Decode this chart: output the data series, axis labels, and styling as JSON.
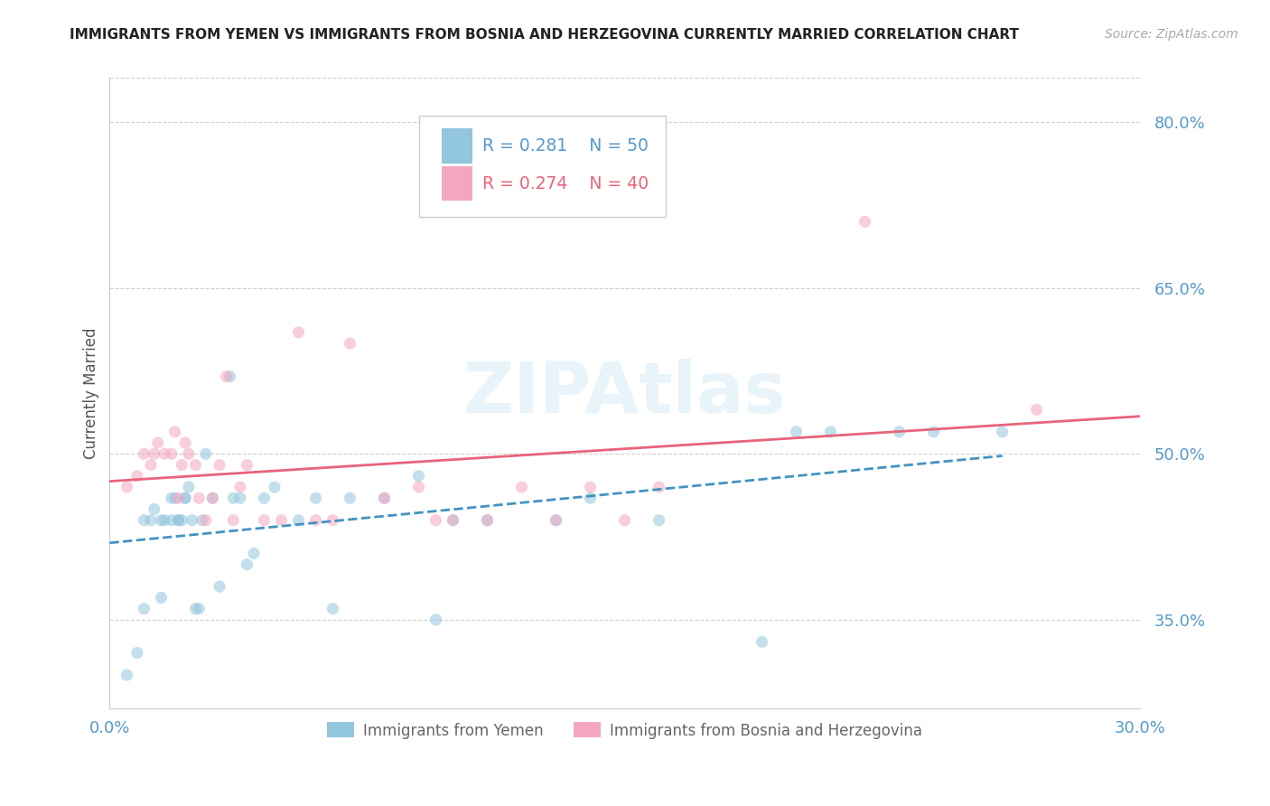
{
  "title": "IMMIGRANTS FROM YEMEN VS IMMIGRANTS FROM BOSNIA AND HERZEGOVINA CURRENTLY MARRIED CORRELATION CHART",
  "source": "Source: ZipAtlas.com",
  "ylabel": "Currently Married",
  "xlim": [
    0.0,
    0.3
  ],
  "ylim": [
    0.27,
    0.84
  ],
  "yticks": [
    0.35,
    0.5,
    0.65,
    0.8
  ],
  "ytick_labels": [
    "35.0%",
    "50.0%",
    "65.0%",
    "80.0%"
  ],
  "xticks": [
    0.0,
    0.05,
    0.1,
    0.15,
    0.2,
    0.25,
    0.3
  ],
  "xtick_labels": [
    "0.0%",
    "",
    "",
    "",
    "",
    "",
    "30.0%"
  ],
  "watermark": "ZIPAtlas",
  "legend_r1": "0.281",
  "legend_n1": "50",
  "legend_r2": "0.274",
  "legend_n2": "40",
  "color_blue": "#92c5de",
  "color_pink": "#f4a6c0",
  "color_blue_line": "#4393c3",
  "color_pink_line": "#e8647a",
  "color_axis_text": "#5599cc",
  "scatter_alpha": 0.55,
  "scatter_size": 90,
  "blue_x": [
    0.005,
    0.008,
    0.01,
    0.01,
    0.012,
    0.013,
    0.015,
    0.015,
    0.016,
    0.018,
    0.018,
    0.019,
    0.02,
    0.02,
    0.021,
    0.022,
    0.022,
    0.023,
    0.024,
    0.025,
    0.026,
    0.027,
    0.028,
    0.03,
    0.032,
    0.035,
    0.036,
    0.038,
    0.04,
    0.042,
    0.045,
    0.048,
    0.055,
    0.06,
    0.065,
    0.07,
    0.08,
    0.09,
    0.095,
    0.1,
    0.11,
    0.13,
    0.14,
    0.16,
    0.19,
    0.2,
    0.21,
    0.23,
    0.24,
    0.26
  ],
  "blue_y": [
    0.3,
    0.32,
    0.36,
    0.44,
    0.44,
    0.45,
    0.37,
    0.44,
    0.44,
    0.44,
    0.46,
    0.46,
    0.44,
    0.44,
    0.44,
    0.46,
    0.46,
    0.47,
    0.44,
    0.36,
    0.36,
    0.44,
    0.5,
    0.46,
    0.38,
    0.57,
    0.46,
    0.46,
    0.4,
    0.41,
    0.46,
    0.47,
    0.44,
    0.46,
    0.36,
    0.46,
    0.46,
    0.48,
    0.35,
    0.44,
    0.44,
    0.44,
    0.46,
    0.44,
    0.33,
    0.52,
    0.52,
    0.52,
    0.52,
    0.52
  ],
  "pink_x": [
    0.005,
    0.008,
    0.01,
    0.012,
    0.013,
    0.014,
    0.016,
    0.018,
    0.019,
    0.02,
    0.021,
    0.022,
    0.023,
    0.025,
    0.026,
    0.028,
    0.03,
    0.032,
    0.034,
    0.036,
    0.038,
    0.04,
    0.045,
    0.05,
    0.055,
    0.06,
    0.065,
    0.07,
    0.08,
    0.09,
    0.095,
    0.1,
    0.11,
    0.12,
    0.13,
    0.14,
    0.15,
    0.16,
    0.22,
    0.27
  ],
  "pink_y": [
    0.47,
    0.48,
    0.5,
    0.49,
    0.5,
    0.51,
    0.5,
    0.5,
    0.52,
    0.46,
    0.49,
    0.51,
    0.5,
    0.49,
    0.46,
    0.44,
    0.46,
    0.49,
    0.57,
    0.44,
    0.47,
    0.49,
    0.44,
    0.44,
    0.61,
    0.44,
    0.44,
    0.6,
    0.46,
    0.47,
    0.44,
    0.44,
    0.44,
    0.47,
    0.44,
    0.47,
    0.44,
    0.47,
    0.71,
    0.54
  ]
}
